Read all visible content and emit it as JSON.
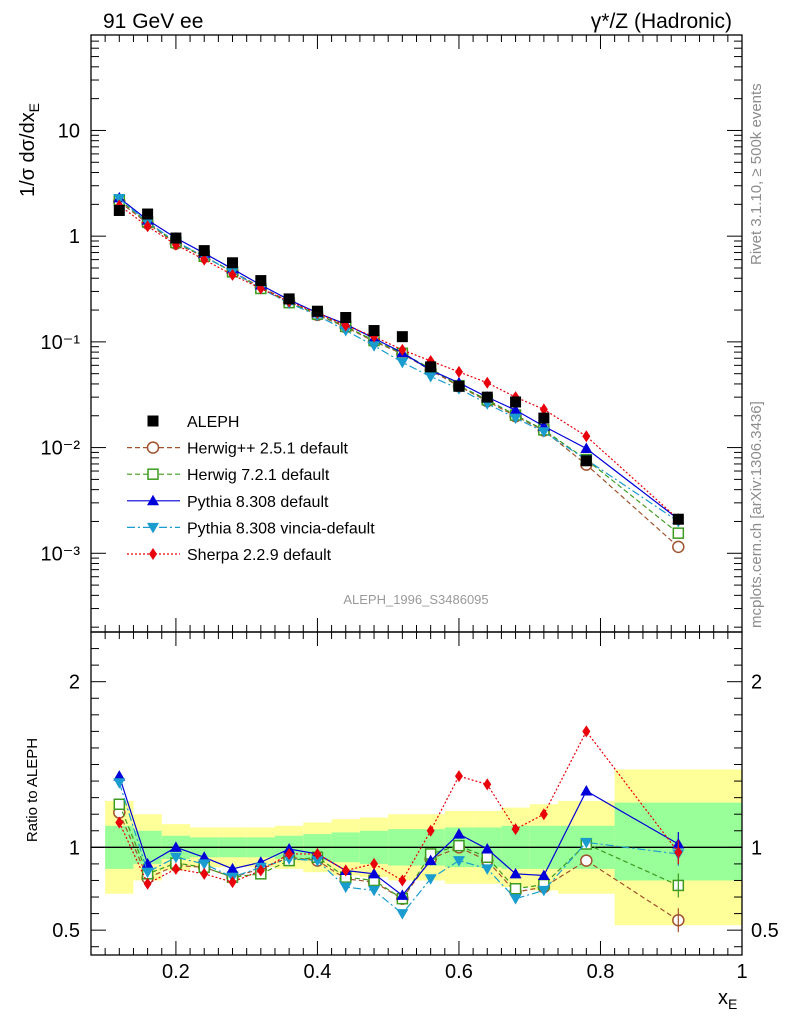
{
  "header": {
    "left": "91 GeV ee",
    "right": "γ*/Z (Hadronic)"
  },
  "side_notes": {
    "rivet": "Rivet 3.1.10, ≥ 500k events",
    "mcplots": "mcplots.cern.ch [arXiv:1306.3436]"
  },
  "watermark": "ALEPH_1996_S3486095",
  "chart_data": {
    "type": "scatter",
    "x": [
      0.12,
      0.16,
      0.2,
      0.24,
      0.28,
      0.32,
      0.36,
      0.4,
      0.44,
      0.48,
      0.52,
      0.56,
      0.6,
      0.64,
      0.68,
      0.72,
      0.78,
      0.91
    ],
    "x_range": [
      0.08,
      1.0
    ],
    "x_ticks": [
      0.2,
      0.4,
      0.6,
      0.8,
      1.0
    ],
    "x_tick_labels": [
      "0.2",
      "0.4",
      "0.6",
      "0.8",
      "1"
    ],
    "xlabel": "x_E",
    "main": {
      "ylabel": "1/σ dσ/dx_E",
      "yscale": "log",
      "ylim": [
        0.00018,
        80
      ],
      "y_ticks": [
        0.001,
        0.01,
        0.1,
        1,
        10
      ],
      "y_tick_labels": [
        "10⁻³",
        "10⁻²",
        "10⁻¹",
        "1",
        "10"
      ]
    },
    "ratio": {
      "ylabel": "Ratio to ALEPH",
      "ylim": [
        0.35,
        2.3
      ],
      "y_ticks": [
        0.5,
        1,
        2
      ],
      "y_tick_labels": [
        "0.5",
        "1",
        "2"
      ],
      "band_edges": [
        0.1,
        0.14,
        0.18,
        0.22,
        0.26,
        0.3,
        0.34,
        0.38,
        0.42,
        0.46,
        0.5,
        0.54,
        0.58,
        0.62,
        0.66,
        0.7,
        0.74,
        0.82,
        1.0
      ],
      "band_inner": [
        [
          0.87,
          1.13
        ],
        [
          0.9,
          1.1
        ],
        [
          0.93,
          1.07
        ],
        [
          0.94,
          1.06
        ],
        [
          0.94,
          1.06
        ],
        [
          0.94,
          1.06
        ],
        [
          0.93,
          1.07
        ],
        [
          0.92,
          1.08
        ],
        [
          0.91,
          1.09
        ],
        [
          0.9,
          1.1
        ],
        [
          0.89,
          1.11
        ],
        [
          0.89,
          1.11
        ],
        [
          0.88,
          1.12
        ],
        [
          0.88,
          1.12
        ],
        [
          0.87,
          1.13
        ],
        [
          0.87,
          1.13
        ],
        [
          0.87,
          1.13
        ],
        [
          0.8,
          1.27
        ]
      ],
      "band_outer": [
        [
          0.72,
          1.28
        ],
        [
          0.8,
          1.2
        ],
        [
          0.86,
          1.14
        ],
        [
          0.88,
          1.12
        ],
        [
          0.88,
          1.12
        ],
        [
          0.88,
          1.12
        ],
        [
          0.87,
          1.13
        ],
        [
          0.85,
          1.15
        ],
        [
          0.83,
          1.17
        ],
        [
          0.82,
          1.18
        ],
        [
          0.8,
          1.2
        ],
        [
          0.8,
          1.2
        ],
        [
          0.78,
          1.22
        ],
        [
          0.78,
          1.22
        ],
        [
          0.76,
          1.24
        ],
        [
          0.74,
          1.26
        ],
        [
          0.72,
          1.28
        ],
        [
          0.53,
          1.47
        ]
      ]
    },
    "series": [
      {
        "name": "ALEPH",
        "label": "ALEPH",
        "color": "#000000",
        "marker": "square-filled",
        "dash": "none",
        "values": [
          1.75,
          1.62,
          0.96,
          0.73,
          0.56,
          0.38,
          0.255,
          0.195,
          0.17,
          0.128,
          0.112,
          0.058,
          0.038,
          0.03,
          0.027,
          0.019,
          0.0075,
          0.0021
        ],
        "ratio": [
          1,
          1,
          1,
          1,
          1,
          1,
          1,
          1,
          1,
          1,
          1,
          1,
          1,
          1,
          1,
          1,
          1,
          1
        ]
      },
      {
        "name": "herwigpp",
        "label": "Herwig++ 2.5.1 default",
        "color": "#a0522d",
        "marker": "circle-open",
        "dash": "5,3",
        "values": [
          2.12,
          1.32,
          0.85,
          0.64,
          0.46,
          0.33,
          0.24,
          0.18,
          0.138,
          0.101,
          0.077,
          0.054,
          0.038,
          0.0275,
          0.0198,
          0.0145,
          0.0069,
          0.00115
        ],
        "ratio": [
          1.21,
          0.815,
          0.89,
          0.88,
          0.82,
          0.87,
          0.94,
          0.92,
          0.81,
          0.79,
          0.69,
          0.93,
          1.0,
          0.92,
          0.73,
          0.76,
          0.92,
          0.56
        ]
      },
      {
        "name": "herwig7",
        "label": "Herwig 7.2.1 default",
        "color": "#3c9a1e",
        "marker": "square-open",
        "dash": "5,3",
        "values": [
          2.2,
          1.36,
          0.87,
          0.645,
          0.46,
          0.32,
          0.235,
          0.183,
          0.14,
          0.103,
          0.078,
          0.056,
          0.0385,
          0.0283,
          0.0203,
          0.0147,
          0.0077,
          0.00155
        ],
        "ratio": [
          1.26,
          0.84,
          0.905,
          0.88,
          0.82,
          0.84,
          0.92,
          0.94,
          0.82,
          0.8,
          0.69,
          0.96,
          1.01,
          0.94,
          0.75,
          0.775,
          1.02,
          0.77
        ]
      },
      {
        "name": "pythia",
        "label": "Pythia 8.308 default",
        "color": "#0000d8",
        "marker": "triangle-up-filled",
        "dash": "none",
        "values": [
          2.3,
          1.42,
          0.96,
          0.69,
          0.49,
          0.345,
          0.25,
          0.188,
          0.147,
          0.108,
          0.079,
          0.054,
          0.041,
          0.03,
          0.0226,
          0.0159,
          0.0098,
          0.0021
        ],
        "ratio": [
          1.43,
          0.9,
          1.0,
          0.94,
          0.87,
          0.91,
          0.99,
          0.96,
          0.86,
          0.84,
          0.71,
          0.92,
          1.08,
          0.99,
          0.84,
          0.83,
          1.34,
          1.02
        ]
      },
      {
        "name": "vincia",
        "label": "Pythia 8.308 vincia-default",
        "color": "#1a9ccf",
        "marker": "triangle-down-filled",
        "dash": "8,3,2,3",
        "values": [
          2.27,
          1.35,
          0.89,
          0.64,
          0.46,
          0.32,
          0.232,
          0.178,
          0.128,
          0.092,
          0.064,
          0.047,
          0.036,
          0.026,
          0.019,
          0.0141,
          0.0077,
          0.002
        ],
        "ratio": [
          1.39,
          0.85,
          0.94,
          0.9,
          0.82,
          0.88,
          0.93,
          0.92,
          0.76,
          0.74,
          0.6,
          0.81,
          0.92,
          0.87,
          0.69,
          0.74,
          1.03,
          0.96
        ]
      },
      {
        "name": "sherpa",
        "label": "Sherpa 2.2.9 default",
        "color": "#e8000b",
        "marker": "diamond-filled",
        "dash": "2,2",
        "values": [
          1.95,
          1.24,
          0.83,
          0.6,
          0.43,
          0.32,
          0.24,
          0.188,
          0.143,
          0.112,
          0.084,
          0.066,
          0.052,
          0.041,
          0.03,
          0.023,
          0.0128,
          0.0021
        ],
        "ratio": [
          1.15,
          0.78,
          0.87,
          0.84,
          0.79,
          0.86,
          0.96,
          0.96,
          0.86,
          0.9,
          0.8,
          1.1,
          1.43,
          1.38,
          1.11,
          1.2,
          1.7,
          0.97
        ]
      }
    ]
  }
}
